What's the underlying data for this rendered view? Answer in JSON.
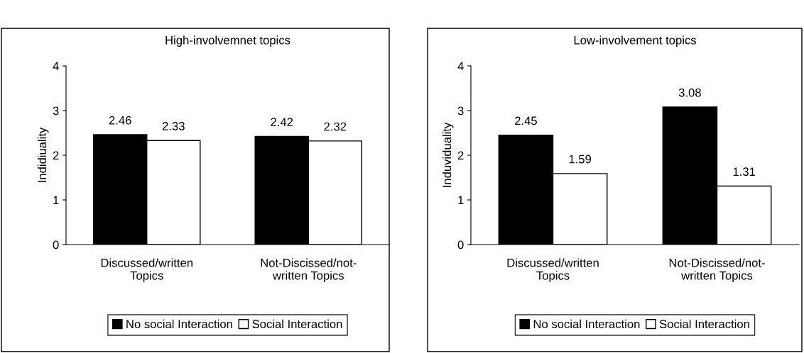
{
  "chart_data": [
    {
      "type": "bar",
      "title": "High-involvemnet topics",
      "ylabel": "Indidiuality",
      "categories": [
        "Discussed/written\nTopics",
        "Not-Discissed/not-\nwritten Topics"
      ],
      "series": [
        {
          "name": "No social Interaction",
          "color": "#000000",
          "values": [
            2.46,
            2.42
          ]
        },
        {
          "name": "Social Interaction",
          "color": "#ffffff",
          "values": [
            2.33,
            2.32
          ]
        }
      ],
      "ylim": [
        0,
        4
      ],
      "yticks": [
        0,
        1,
        2,
        3,
        4
      ],
      "data_labels": true,
      "legend": "bottom",
      "grid": false
    },
    {
      "type": "bar",
      "title": "Low-involvement topics",
      "ylabel": "Induviduality",
      "categories": [
        "Discussed/written\nTopics",
        "Not-Discissed/not-\nwritten Topics"
      ],
      "series": [
        {
          "name": "No social Interaction",
          "color": "#000000",
          "values": [
            2.45,
            3.08
          ]
        },
        {
          "name": "Social Interaction",
          "color": "#ffffff",
          "values": [
            1.59,
            1.31
          ]
        }
      ],
      "ylim": [
        0,
        4
      ],
      "yticks": [
        0,
        1,
        2,
        3,
        4
      ],
      "data_labels": true,
      "legend": "bottom",
      "grid": false
    }
  ]
}
